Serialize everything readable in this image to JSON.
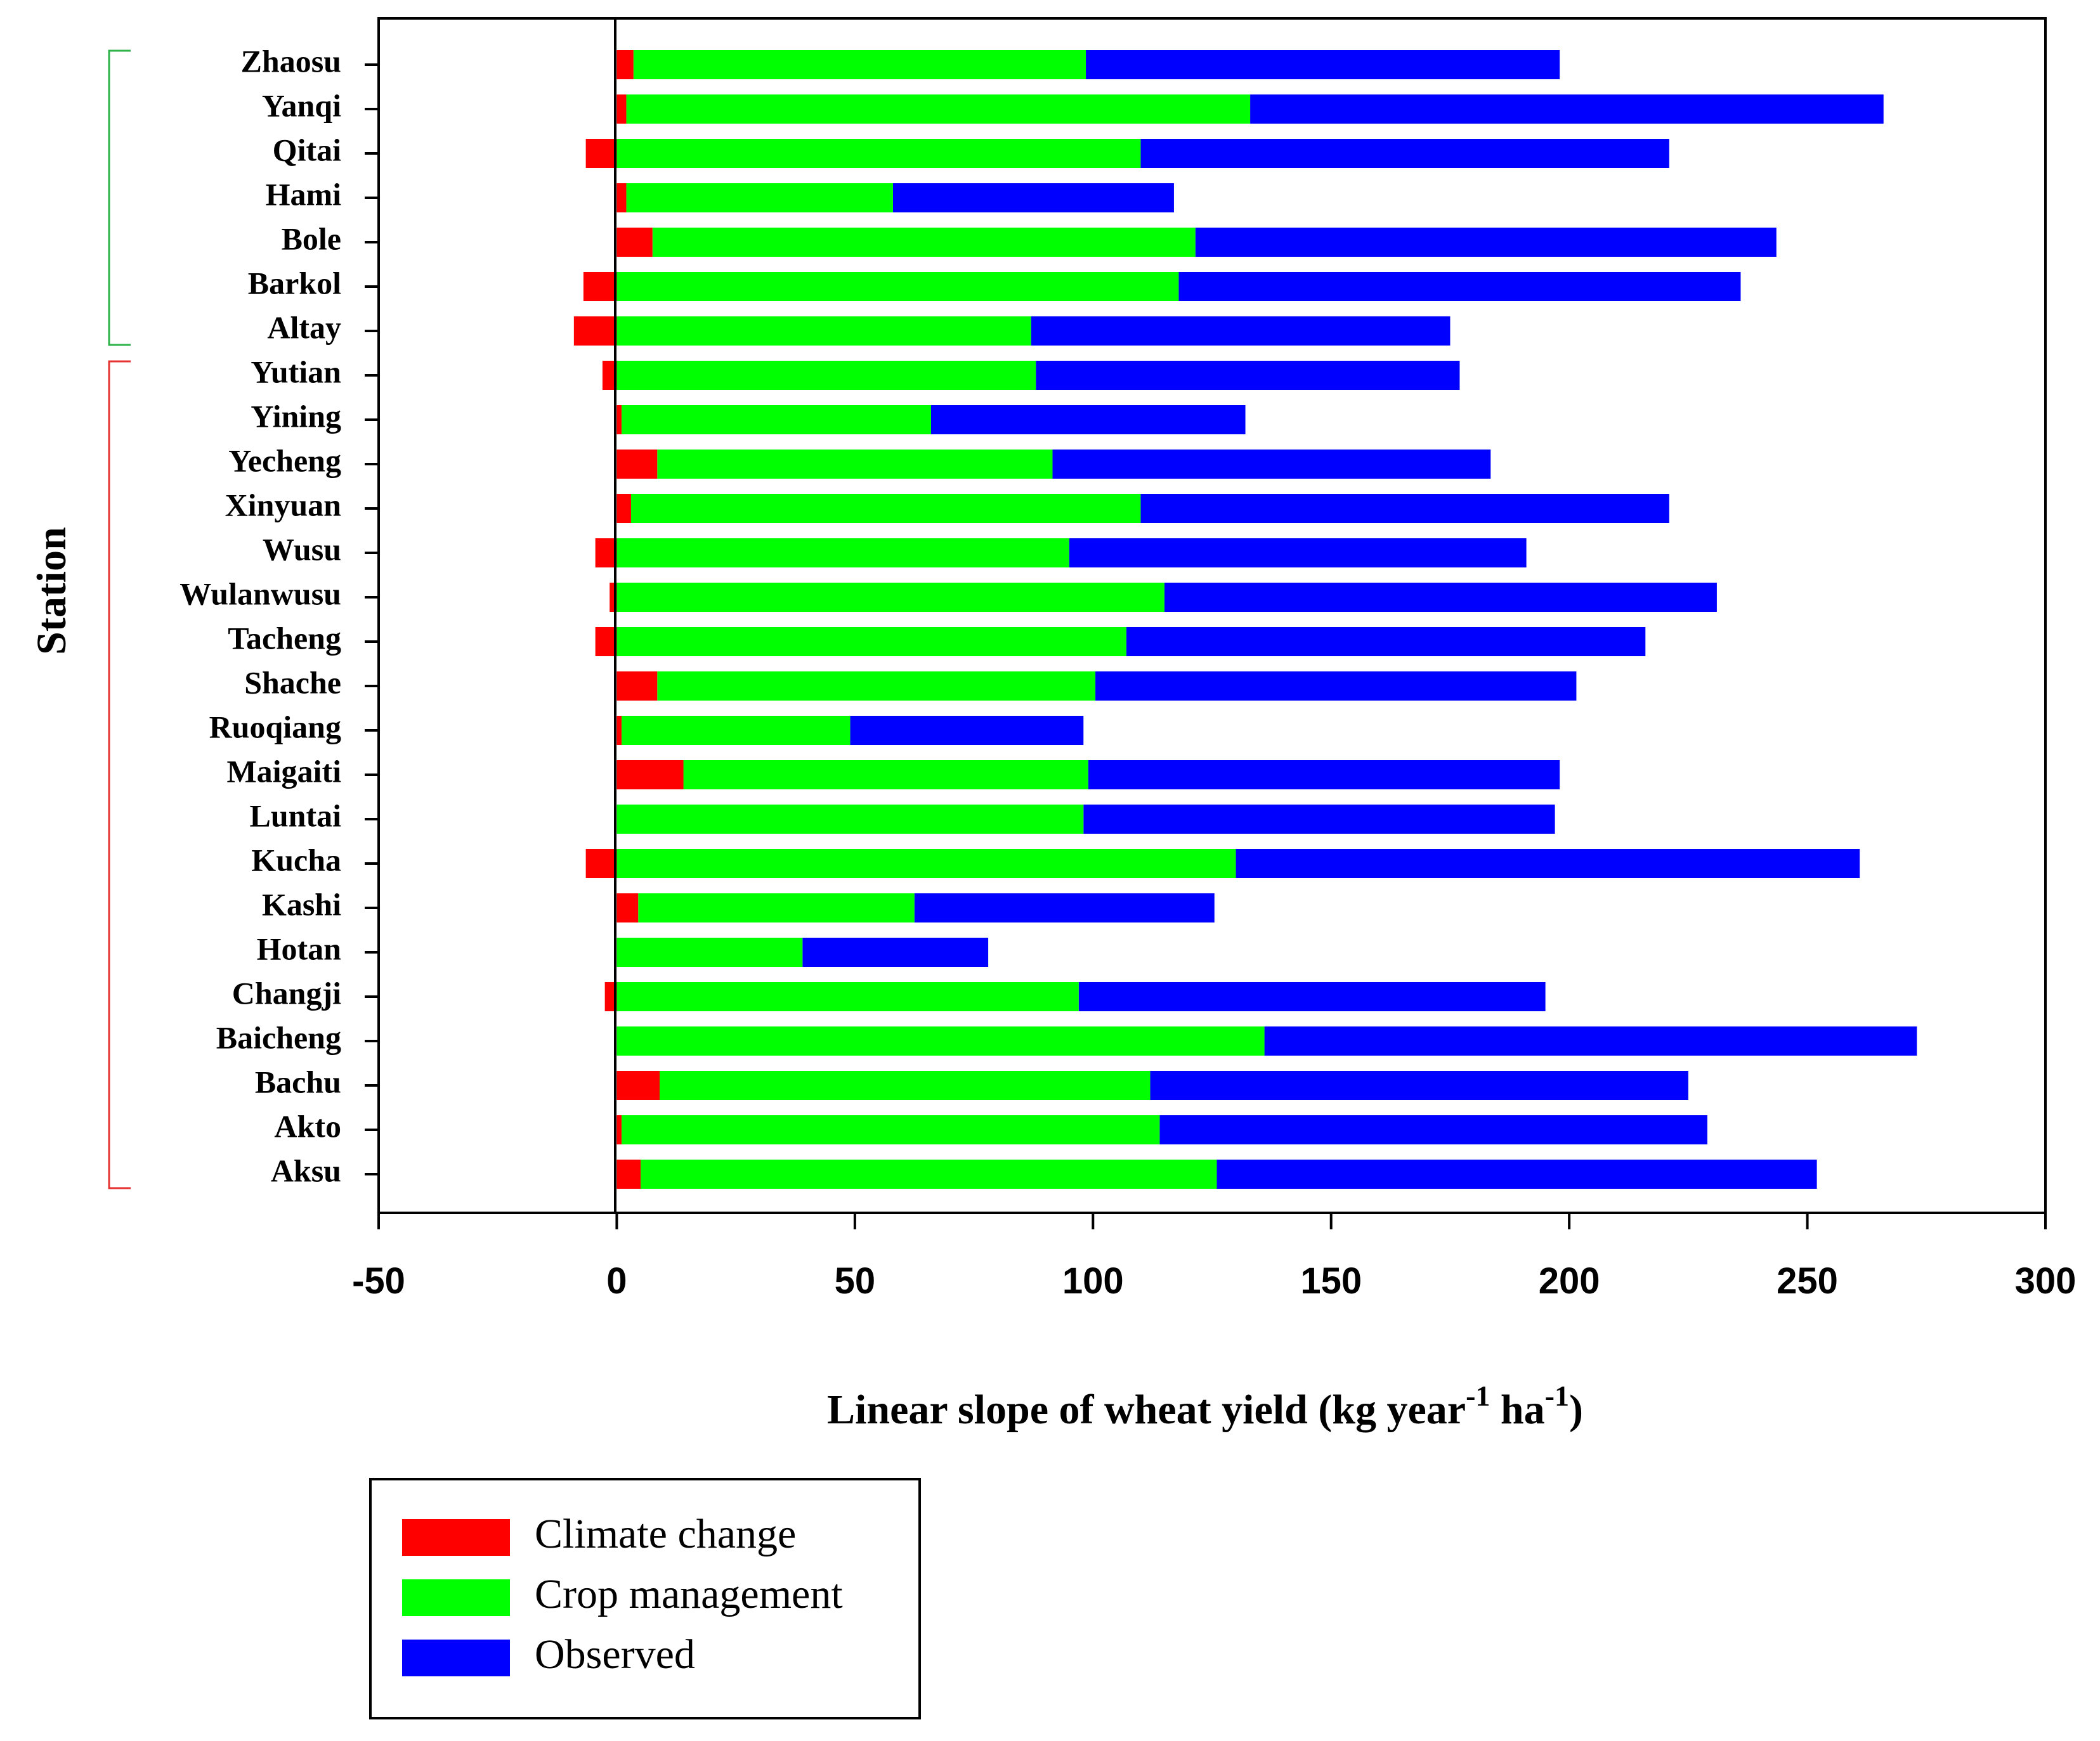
{
  "chart_data": {
    "type": "bar",
    "orientation": "horizontal",
    "stacked": true,
    "categories": [
      "Zhaosu",
      "Yanqi",
      "Qitai",
      "Hami",
      "Bole",
      "Barkol",
      "Altay",
      "Yutian",
      "Yining",
      "Yecheng",
      "Xinyuan",
      "Wusu",
      "Wulanwusu",
      "Tacheng",
      "Shache",
      "Ruoqiang",
      "Maigaiti",
      "Luntai",
      "Kucha",
      "Kashi",
      "Hotan",
      "Changji",
      "Baicheng",
      "Bachu",
      "Akto",
      "Aksu"
    ],
    "series": [
      {
        "name": "Climate change",
        "color": "#ff0000",
        "values": [
          3.5,
          2,
          -6.5,
          2,
          7.5,
          -7,
          -9,
          -3,
          1,
          8.5,
          3,
          -4.5,
          -1.5,
          -4.5,
          8.5,
          1,
          14,
          0,
          -6.5,
          4.5,
          0,
          -2.5,
          0,
          9,
          1,
          5
        ]
      },
      {
        "name": "Crop management",
        "color": "#00ff00",
        "values": [
          95,
          131,
          110,
          56,
          114,
          118,
          87,
          88,
          65,
          83,
          107,
          95,
          115,
          107,
          92,
          48,
          85,
          98,
          130,
          58,
          39,
          97,
          136,
          103,
          113,
          121
        ]
      },
      {
        "name": "Observed",
        "color": "#0000ff",
        "values": [
          99.5,
          133,
          111,
          59,
          122,
          118,
          88,
          89,
          66,
          92,
          111,
          96,
          116,
          109,
          101,
          49,
          99,
          99,
          131,
          63,
          39,
          98,
          137,
          113,
          115,
          126
        ]
      }
    ],
    "bar_left_edges": [
      0,
      0,
      -6.5,
      0,
      0,
      -7,
      -9,
      -3,
      0,
      0,
      0,
      -4.5,
      -1.5,
      -4.5,
      0,
      0,
      0,
      0,
      -6.5,
      0,
      0,
      -2.5,
      0,
      0,
      0,
      0
    ],
    "ylabel": "Station",
    "xlabel": "Linear slope of wheat yield (kg year",
    "xlabel_sup1": "-1",
    "xlabel_mid": " ha",
    "xlabel_sup2": "-1",
    "xlabel_end": ")",
    "xlim": [
      -50,
      300
    ],
    "xticks": [
      -50,
      0,
      50,
      100,
      150,
      200,
      250,
      300
    ],
    "xtick_labels": [
      "-50",
      "0",
      "50",
      "100",
      "150",
      "200",
      "250",
      "300"
    ],
    "groups": [
      {
        "stations": [
          "Zhaosu",
          "Yanqi",
          "Qitai",
          "Hami",
          "Bole",
          "Barkol",
          "Altay"
        ],
        "bracket_color": "#2db34a"
      },
      {
        "stations": [
          "Yutian",
          "Yining",
          "Yecheng",
          "Xinyuan",
          "Wusu",
          "Wulanwusu",
          "Tacheng",
          "Shache",
          "Ruoqiang",
          "Maigaiti",
          "Luntai",
          "Kucha",
          "Kashi",
          "Hotan",
          "Changji",
          "Baicheng",
          "Bachu",
          "Akto",
          "Aksu"
        ],
        "bracket_color": "#e53333"
      }
    ],
    "legend": {
      "position": "bottom-left",
      "entries": [
        "Climate change",
        "Crop management",
        "Observed"
      ]
    },
    "grid": false
  }
}
